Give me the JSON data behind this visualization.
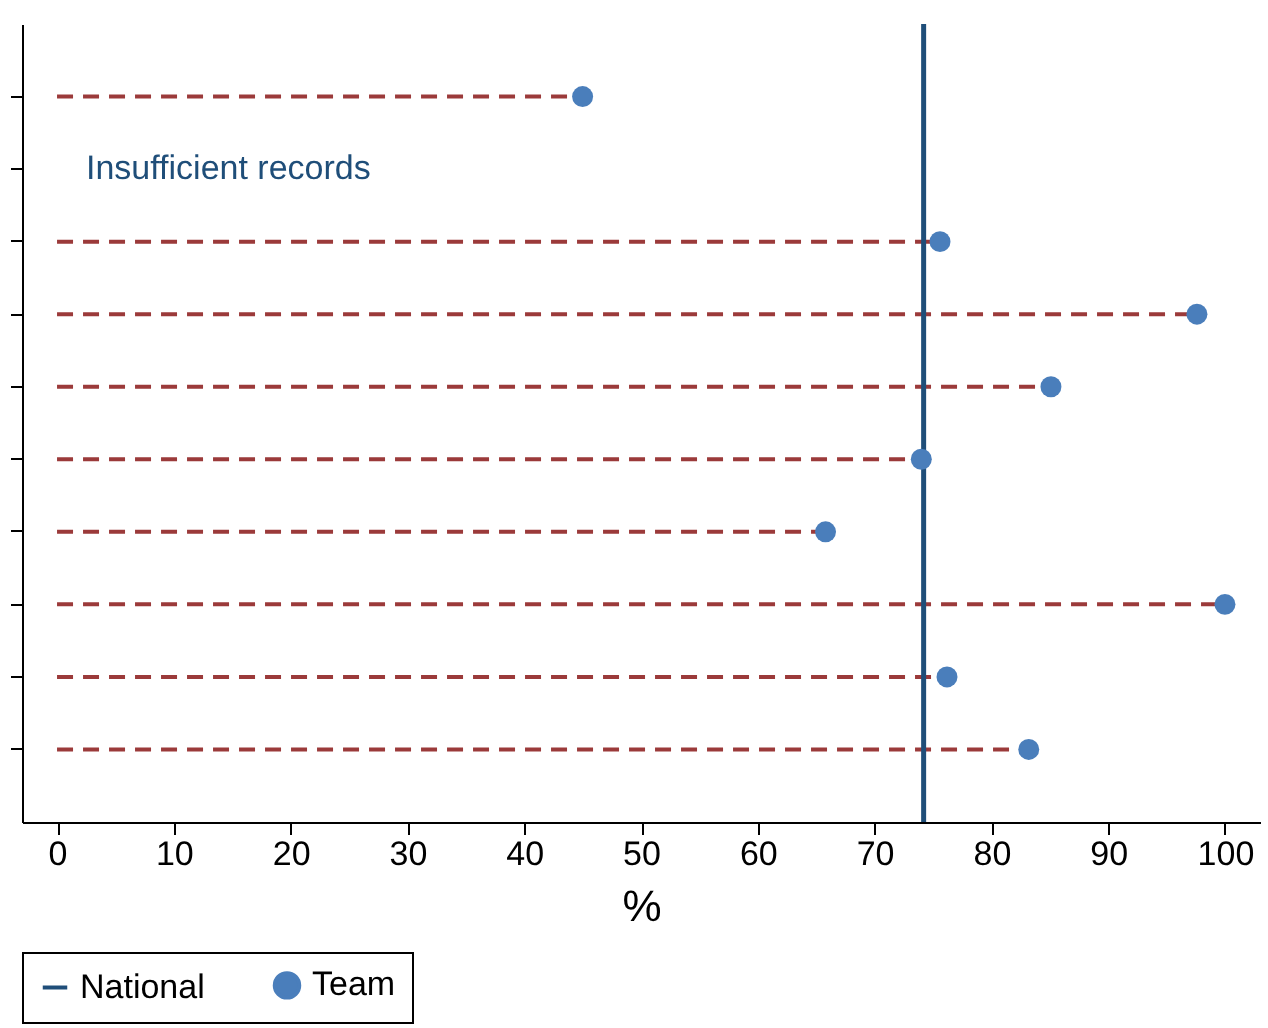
{
  "chart_data": {
    "type": "lollipop",
    "orientation": "horizontal",
    "xlabel": "%",
    "categories": [
      null,
      null,
      null,
      null,
      null,
      null,
      null,
      null,
      null,
      null
    ],
    "series": [
      {
        "name": "Team",
        "color": "#4a7ebb",
        "values": [
          45.0,
          null,
          75.6,
          97.6,
          85.1,
          74.0,
          65.8,
          100,
          76.2,
          83.2
        ]
      }
    ],
    "annotations": [
      "Insufficient records"
    ],
    "ref_lines": [
      {
        "axis": "x",
        "value": 74.2,
        "label": "National",
        "color": "#1f4e79"
      }
    ],
    "xlim": [
      -3,
      103
    ],
    "xticks": [
      0,
      10,
      20,
      30,
      40,
      50,
      60,
      70,
      80,
      90,
      100
    ],
    "tick_labels": "x",
    "grid": false,
    "legend": "bottom left",
    "marker": "circle",
    "line_style": "dashed"
  }
}
